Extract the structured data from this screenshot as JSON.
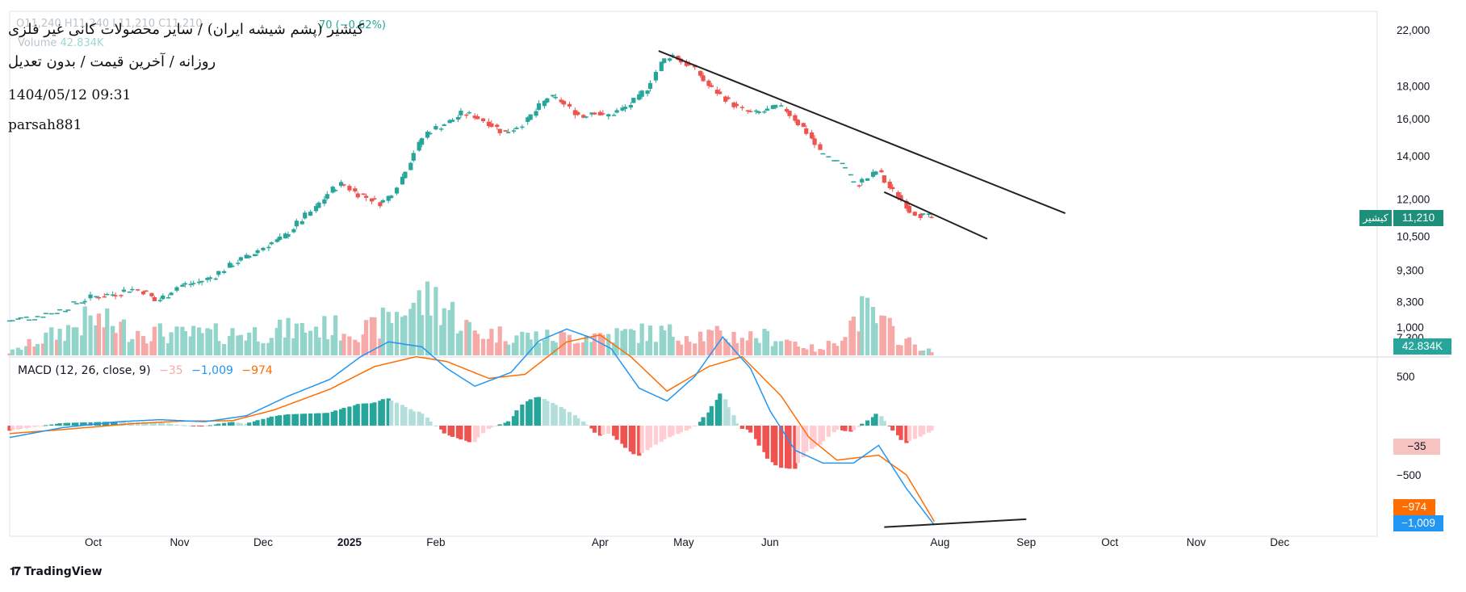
{
  "header": {
    "title": "کیشیر (پشم شیشه ایران) / سایر محصولات کانی غیر فلزی",
    "subtitle": "روزانه / آخرین قیمت / بدون تعدیل",
    "timestamp": "1404/05/12 09:31",
    "author": "parsah881",
    "ohlc_faint": "O11,240 H11,240 L11,210 C11,210",
    "change": "70 (−0.62%)",
    "volume_label": "Volume",
    "volume_value": "42.834K"
  },
  "macd": {
    "label": "MACD (12, 26, close, 9)",
    "hist_value": "−35",
    "macd_value": "−1,009",
    "signal_value": "−974"
  },
  "price_tags": {
    "symbol": "کیشیر",
    "last_price": "11,210",
    "volume": "42.834K",
    "macd_hist": "−35",
    "macd_signal": "−974",
    "macd_line": "−1,009"
  },
  "colors": {
    "up": "#26a69a",
    "down": "#ef5350",
    "up_volume": "#93d4cb",
    "down_volume": "#f7a9a7",
    "macd_line": "#2196f3",
    "signal_line": "#ff6d00",
    "trendline": "#222222"
  },
  "branding": "TradingView",
  "chart_data": {
    "type": "candlestick",
    "price_scale": "log",
    "price_axis_ticks": [
      22000,
      18000,
      16000,
      14000,
      12000,
      10500,
      9300,
      8300,
      7300
    ],
    "price_axis_labels": [
      "22,000",
      "18,000",
      "16,000",
      "14,000",
      "12,000",
      "10,500",
      "9,300",
      "8,300",
      "7,300"
    ],
    "macd_axis_ticks": [
      1000,
      500,
      -500
    ],
    "macd_axis_labels": [
      "1,000",
      "500",
      "−500"
    ],
    "x_axis_labels": [
      "Oct",
      "Nov",
      "Dec",
      "2025",
      "Feb",
      "Apr",
      "May",
      "Jun",
      "Aug",
      "Sep",
      "Oct",
      "Nov",
      "Dec"
    ],
    "x_axis_dates": [
      "2024-10-01",
      "2024-11-01",
      "2024-12-01",
      "2025-01-01",
      "2025-02-01",
      "2025-04-01",
      "2025-05-01",
      "2025-06-01",
      "2025-08-01",
      "2025-09-01",
      "2025-10-01",
      "2025-11-01",
      "2025-12-01"
    ],
    "price_path": [
      [
        "2024-09-01",
        7750
      ],
      [
        "2024-09-10",
        7850
      ],
      [
        "2024-09-20",
        8050
      ],
      [
        "2024-09-27",
        8300
      ],
      [
        "2024-10-01",
        8450
      ],
      [
        "2024-10-05",
        8500
      ],
      [
        "2024-10-10",
        8550
      ],
      [
        "2024-10-15",
        8700
      ],
      [
        "2024-10-20",
        8600
      ],
      [
        "2024-10-24",
        8300
      ],
      [
        "2024-10-28",
        8500
      ],
      [
        "2024-11-01",
        8800
      ],
      [
        "2024-11-08",
        8900
      ],
      [
        "2024-11-14",
        9100
      ],
      [
        "2024-11-20",
        9500
      ],
      [
        "2024-11-27",
        9800
      ],
      [
        "2024-12-03",
        10200
      ],
      [
        "2024-12-08",
        10400
      ],
      [
        "2024-12-14",
        11000
      ],
      [
        "2024-12-20",
        11600
      ],
      [
        "2024-12-26",
        12400
      ],
      [
        "2024-12-30",
        12700
      ],
      [
        "2025-01-03",
        12300
      ],
      [
        "2025-01-09",
        12000
      ],
      [
        "2025-01-13",
        11800
      ],
      [
        "2025-01-17",
        12300
      ],
      [
        "2025-01-21",
        13200
      ],
      [
        "2025-01-25",
        14300
      ],
      [
        "2025-01-29",
        15200
      ],
      [
        "2025-02-03",
        15600
      ],
      [
        "2025-02-07",
        15900
      ],
      [
        "2025-02-11",
        16300
      ],
      [
        "2025-02-15",
        16200
      ],
      [
        "2025-02-21",
        15700
      ],
      [
        "2025-02-26",
        15200
      ],
      [
        "2025-03-02",
        15500
      ],
      [
        "2025-03-06",
        15900
      ],
      [
        "2025-03-10",
        16600
      ],
      [
        "2025-03-14",
        17300
      ],
      [
        "2025-03-18",
        17100
      ],
      [
        "2025-03-22",
        16500
      ],
      [
        "2025-03-26",
        16100
      ],
      [
        "2025-03-30",
        16500
      ],
      [
        "2025-04-03",
        16100
      ],
      [
        "2025-04-07",
        16400
      ],
      [
        "2025-04-11",
        16700
      ],
      [
        "2025-04-15",
        17200
      ],
      [
        "2025-04-19",
        18000
      ],
      [
        "2025-04-23",
        19500
      ],
      [
        "2025-04-27",
        20200
      ],
      [
        "2025-05-01",
        19600
      ],
      [
        "2025-05-04",
        19300
      ],
      [
        "2025-05-07",
        18700
      ],
      [
        "2025-05-10",
        18000
      ],
      [
        "2025-05-14",
        17500
      ],
      [
        "2025-05-18",
        17000
      ],
      [
        "2025-05-22",
        16500
      ],
      [
        "2025-05-27",
        16300
      ],
      [
        "2025-06-01",
        16500
      ],
      [
        "2025-06-04",
        16700
      ],
      [
        "2025-06-07",
        16500
      ],
      [
        "2025-06-10",
        16000
      ],
      [
        "2025-06-15",
        15200
      ],
      [
        "2025-06-20",
        14100
      ],
      [
        "2025-06-25",
        13800
      ],
      [
        "2025-06-28",
        13600
      ],
      [
        "2025-07-02",
        12600
      ],
      [
        "2025-07-06",
        12900
      ],
      [
        "2025-07-10",
        13300
      ],
      [
        "2025-07-14",
        12500
      ],
      [
        "2025-07-18",
        12100
      ],
      [
        "2025-07-22",
        11500
      ],
      [
        "2025-07-26",
        11300
      ],
      [
        "2025-07-30",
        11210
      ]
    ],
    "volume_path": [
      [
        "2024-09-01",
        0.05
      ],
      [
        "2024-10-01",
        0.7
      ],
      [
        "2024-10-15",
        0.5
      ],
      [
        "2024-11-01",
        0.4
      ],
      [
        "2024-12-01",
        0.45
      ],
      [
        "2024-12-20",
        0.55
      ],
      [
        "2025-01-10",
        0.5
      ],
      [
        "2025-01-23",
        1.0
      ],
      [
        "2025-02-02",
        1.1
      ],
      [
        "2025-02-15",
        0.45
      ],
      [
        "2025-03-15",
        0.35
      ],
      [
        "2025-04-20",
        0.45
      ],
      [
        "2025-05-10",
        0.4
      ],
      [
        "2025-06-05",
        0.35
      ],
      [
        "2025-06-20",
        0.08
      ],
      [
        "2025-07-05",
        0.85
      ],
      [
        "2025-07-20",
        0.3
      ],
      [
        "2025-07-30",
        0.05
      ]
    ],
    "macd_line": [
      [
        "2024-09-01",
        -120
      ],
      [
        "2024-09-20",
        -20
      ],
      [
        "2024-10-10",
        40
      ],
      [
        "2024-10-25",
        60
      ],
      [
        "2024-11-10",
        40
      ],
      [
        "2024-11-25",
        100
      ],
      [
        "2024-12-10",
        300
      ],
      [
        "2024-12-25",
        470
      ],
      [
        "2025-01-05",
        700
      ],
      [
        "2025-01-15",
        850
      ],
      [
        "2025-01-27",
        800
      ],
      [
        "2025-02-05",
        580
      ],
      [
        "2025-02-15",
        400
      ],
      [
        "2025-02-28",
        540
      ],
      [
        "2025-03-10",
        860
      ],
      [
        "2025-03-20",
        980
      ],
      [
        "2025-03-28",
        900
      ],
      [
        "2025-04-05",
        780
      ],
      [
        "2025-04-15",
        380
      ],
      [
        "2025-04-25",
        250
      ],
      [
        "2025-05-05",
        500
      ],
      [
        "2025-05-15",
        900
      ],
      [
        "2025-05-25",
        580
      ],
      [
        "2025-06-01",
        150
      ],
      [
        "2025-06-10",
        -250
      ],
      [
        "2025-06-20",
        -380
      ],
      [
        "2025-07-01",
        -380
      ],
      [
        "2025-07-10",
        -200
      ],
      [
        "2025-07-20",
        -640
      ],
      [
        "2025-07-30",
        -1009
      ]
    ],
    "signal_line": [
      [
        "2024-09-01",
        -80
      ],
      [
        "2024-09-20",
        -40
      ],
      [
        "2024-10-15",
        20
      ],
      [
        "2024-11-01",
        45
      ],
      [
        "2024-11-20",
        50
      ],
      [
        "2024-12-05",
        160
      ],
      [
        "2024-12-25",
        370
      ],
      [
        "2025-01-10",
        600
      ],
      [
        "2025-01-25",
        700
      ],
      [
        "2025-02-05",
        650
      ],
      [
        "2025-02-20",
        480
      ],
      [
        "2025-03-05",
        520
      ],
      [
        "2025-03-20",
        850
      ],
      [
        "2025-04-01",
        920
      ],
      [
        "2025-04-12",
        700
      ],
      [
        "2025-04-25",
        350
      ],
      [
        "2025-05-10",
        600
      ],
      [
        "2025-05-22",
        700
      ],
      [
        "2025-06-05",
        300
      ],
      [
        "2025-06-15",
        -120
      ],
      [
        "2025-06-25",
        -350
      ],
      [
        "2025-07-10",
        -300
      ],
      [
        "2025-07-20",
        -500
      ],
      [
        "2025-07-30",
        -974
      ]
    ],
    "trendlines": [
      {
        "name": "resistance",
        "from": [
          "2025-04-22",
          20400
        ],
        "to": [
          "2025-09-15",
          11400
        ]
      },
      {
        "name": "support",
        "from": [
          "2025-07-12",
          12300
        ],
        "to": [
          "2025-08-18",
          10400
        ]
      },
      {
        "name": "macd-divergence",
        "from": [
          "2025-07-12",
          -1030
        ],
        "to": [
          "2025-09-01",
          -950
        ]
      }
    ]
  }
}
